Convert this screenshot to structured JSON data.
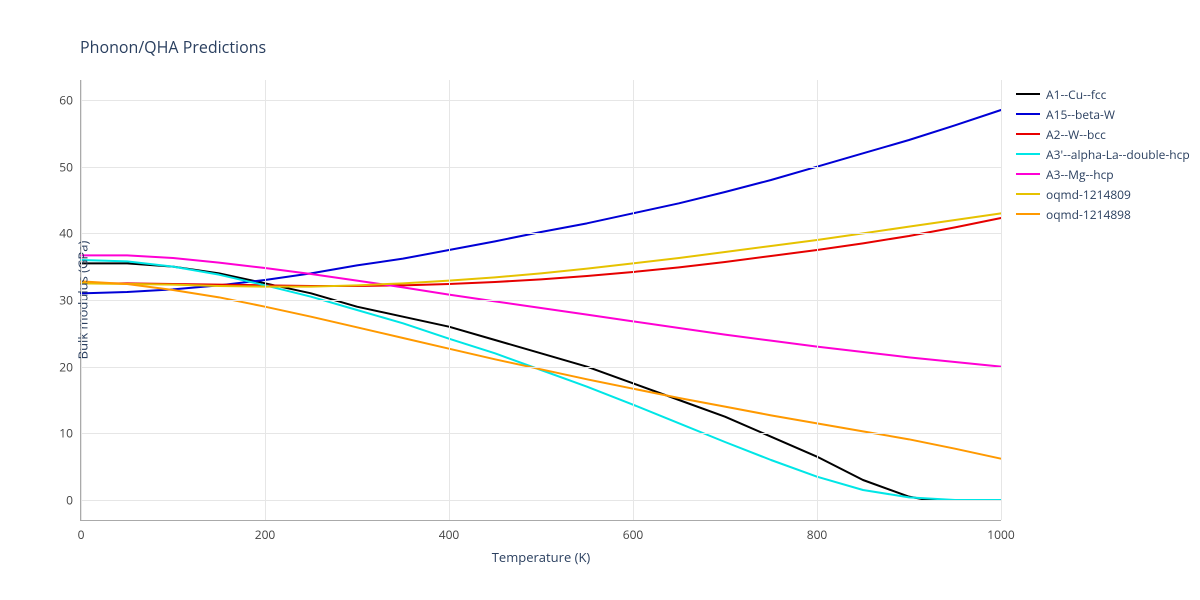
{
  "chart": {
    "type": "line",
    "title": "Phonon/QHA Predictions",
    "title_fontsize": 16,
    "background_color": "#ffffff",
    "grid_color": "#e6e6e6",
    "tick_fontsize": 12,
    "label_fontsize": 13,
    "text_color": "#2a3f5f",
    "xlabel": "Temperature (K)",
    "ylabel": "Bulk modulus (GPa)",
    "xlim": [
      0,
      1000
    ],
    "ylim": [
      -3,
      63
    ],
    "xticks": [
      0,
      200,
      400,
      600,
      800,
      1000
    ],
    "yticks": [
      0,
      10,
      20,
      30,
      40,
      50,
      60
    ],
    "line_width": 2,
    "series": [
      {
        "name": "A1--Cu--fcc",
        "color": "#000000",
        "x": [
          0,
          50,
          100,
          150,
          200,
          250,
          300,
          350,
          400,
          450,
          500,
          550,
          600,
          650,
          700,
          750,
          800,
          850,
          900,
          920,
          950,
          1000
        ],
        "y": [
          35.5,
          35.5,
          35.0,
          34.0,
          32.5,
          31.0,
          29.0,
          27.5,
          26.0,
          24.0,
          22.0,
          20.0,
          17.5,
          15.0,
          12.5,
          9.5,
          6.5,
          3.0,
          0.5,
          0.0,
          0.0,
          0.0
        ]
      },
      {
        "name": "A15--beta-W",
        "color": "#0000d6",
        "x": [
          0,
          50,
          100,
          150,
          200,
          250,
          300,
          350,
          400,
          450,
          500,
          550,
          600,
          650,
          700,
          750,
          800,
          850,
          900,
          950,
          1000
        ],
        "y": [
          31.0,
          31.2,
          31.6,
          32.2,
          33.0,
          34.0,
          35.2,
          36.2,
          37.5,
          38.8,
          40.2,
          41.5,
          43.0,
          44.5,
          46.2,
          48.0,
          50.0,
          52.0,
          54.0,
          56.2,
          58.5
        ]
      },
      {
        "name": "A2--W--bcc",
        "color": "#e60000",
        "x": [
          0,
          50,
          100,
          150,
          200,
          250,
          300,
          350,
          400,
          450,
          500,
          550,
          600,
          650,
          700,
          750,
          800,
          850,
          900,
          950,
          1000
        ],
        "y": [
          32.5,
          32.5,
          32.4,
          32.3,
          32.2,
          32.1,
          32.1,
          32.2,
          32.4,
          32.7,
          33.1,
          33.6,
          34.2,
          34.9,
          35.7,
          36.6,
          37.5,
          38.5,
          39.6,
          40.9,
          42.3
        ]
      },
      {
        "name": "A3'--alpha-La--double-hcp",
        "color": "#00e6e6",
        "x": [
          0,
          50,
          100,
          150,
          200,
          250,
          300,
          350,
          400,
          450,
          500,
          550,
          600,
          650,
          700,
          750,
          800,
          850,
          900,
          950,
          1000
        ],
        "y": [
          36.0,
          35.8,
          35.0,
          33.8,
          32.2,
          30.5,
          28.5,
          26.5,
          24.2,
          22.0,
          19.5,
          17.0,
          14.3,
          11.5,
          8.7,
          6.0,
          3.5,
          1.5,
          0.4,
          0.0,
          0.0
        ]
      },
      {
        "name": "A3--Mg--hcp",
        "color": "#ff00d4",
        "x": [
          0,
          50,
          100,
          150,
          200,
          250,
          300,
          350,
          400,
          450,
          500,
          550,
          600,
          650,
          700,
          750,
          800,
          850,
          900,
          950,
          1000
        ],
        "y": [
          36.7,
          36.7,
          36.3,
          35.6,
          34.8,
          33.9,
          32.9,
          31.9,
          30.8,
          29.8,
          28.8,
          27.8,
          26.8,
          25.8,
          24.8,
          23.9,
          23.0,
          22.2,
          21.4,
          20.7,
          20.0
        ]
      },
      {
        "name": "oqmd-1214809",
        "color": "#e6c200",
        "x": [
          0,
          50,
          100,
          150,
          200,
          250,
          300,
          350,
          400,
          450,
          500,
          550,
          600,
          650,
          700,
          750,
          800,
          850,
          900,
          950,
          1000
        ],
        "y": [
          32.5,
          32.4,
          32.3,
          32.1,
          32.0,
          32.0,
          32.2,
          32.5,
          32.9,
          33.4,
          34.0,
          34.7,
          35.5,
          36.3,
          37.2,
          38.1,
          39.0,
          40.0,
          41.0,
          42.0,
          43.0
        ]
      },
      {
        "name": "oqmd-1214898",
        "color": "#ff9900",
        "x": [
          0,
          50,
          100,
          150,
          200,
          250,
          300,
          350,
          400,
          450,
          500,
          550,
          600,
          650,
          700,
          750,
          800,
          850,
          900,
          950,
          1000
        ],
        "y": [
          32.8,
          32.4,
          31.5,
          30.4,
          29.0,
          27.5,
          25.9,
          24.3,
          22.7,
          21.1,
          19.6,
          18.1,
          16.7,
          15.3,
          14.0,
          12.7,
          11.5,
          10.3,
          9.1,
          7.7,
          6.2
        ]
      }
    ]
  }
}
